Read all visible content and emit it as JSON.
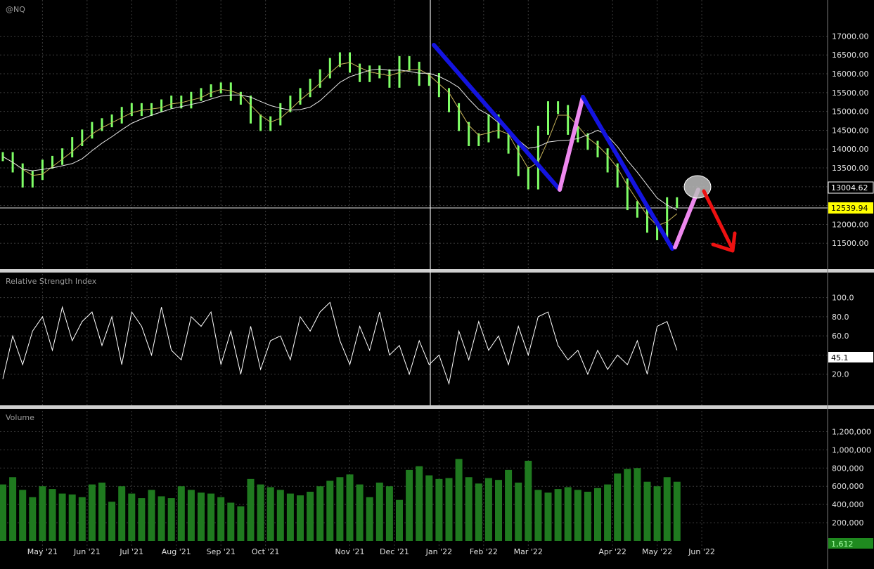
{
  "symbol": "@NQ",
  "x_axis": {
    "labels": [
      "May '21",
      "Jun '21",
      "Jul '21",
      "Aug '21",
      "Sep '21",
      "Oct '21",
      "Nov '21",
      "Dec '21",
      "Jan '22",
      "Feb '22",
      "Mar '22",
      "Apr '22",
      "May '22",
      "Jun '22"
    ],
    "positions_week": [
      4,
      8.5,
      13,
      17.5,
      22,
      26.5,
      35,
      39.5,
      44,
      48.5,
      53,
      61.5,
      66,
      70.5
    ]
  },
  "colors": {
    "background": "#000000",
    "grid": "#3a3a3a",
    "price_bars": "#7fff66",
    "ma_fast": "#c8b45a",
    "ma_slow": "#e8e8e8",
    "rsi_line": "#ffffff",
    "volume_bars": "#1f7a1f",
    "trend_down": "#1414e0",
    "trend_up": "#ee88ee",
    "forecast_arrow": "#ee1111",
    "last_price_tag": "#ffff00"
  },
  "price_panel": {
    "title": "@NQ",
    "last_value_label": "12539.94",
    "reference_value_label": "13004.62",
    "ylim": [
      11150,
      17400
    ],
    "ticks": [
      "17000.00",
      "16500.00",
      "16000.00",
      "15500.00",
      "15000.00",
      "14500.00",
      "14000.00",
      "13500.00",
      "13000.00",
      "12500.00",
      "12000.00",
      "11500.00"
    ]
  },
  "rsi_panel": {
    "title": "Relative Strength Index",
    "last_value_label": "45.1",
    "ylim": [
      0,
      110
    ],
    "ticks": [
      "100.0",
      "80.0",
      "60.0",
      "40.0",
      "20.0"
    ]
  },
  "volume_panel": {
    "title": "Volume",
    "last_value_label": "1,612",
    "ylim": [
      0,
      1350000
    ],
    "ticks": [
      "1,200,000",
      "1,000,000",
      "800,000",
      "600,000",
      "400,000",
      "200,000"
    ]
  },
  "chart_data": {
    "type": "line",
    "x_unit": "week",
    "price_close": {
      "name": "@NQ",
      "x": [
        0,
        1,
        2,
        3,
        4,
        5,
        6,
        7,
        8,
        9,
        10,
        11,
        12,
        13,
        14,
        15,
        16,
        17,
        18,
        19,
        20,
        21,
        22,
        23,
        24,
        25,
        26,
        27,
        28,
        29,
        30,
        31,
        32,
        33,
        34,
        35,
        36,
        37,
        38,
        39,
        40,
        41,
        42,
        43,
        44,
        45,
        46,
        47,
        48,
        49,
        50,
        51,
        52,
        53,
        54,
        55,
        56,
        57,
        58,
        59,
        60,
        61,
        62,
        63,
        64,
        65,
        66,
        67,
        68
      ],
      "values": [
        13800,
        13500,
        13100,
        13300,
        13600,
        13700,
        13900,
        14200,
        14400,
        14600,
        14700,
        14800,
        15000,
        15100,
        15000,
        15100,
        15200,
        15300,
        15200,
        15400,
        15500,
        15600,
        15650,
        15400,
        15300,
        14800,
        14600,
        14750,
        15100,
        15300,
        15500,
        15750,
        16000,
        16300,
        16450,
        16150,
        15900,
        16100,
        16000,
        15750,
        16350,
        16200,
        15800,
        15900,
        15500,
        15100,
        14600,
        14200,
        14300,
        14800,
        14400,
        14000,
        13400,
        13050,
        14500,
        15150,
        15050,
        14500,
        14300,
        14100,
        13900,
        13500,
        13100,
        12500,
        12300,
        11900,
        11700,
        12600,
        12550
      ]
    },
    "rsi": {
      "name": "Relative Strength Index",
      "x": [
        0,
        1,
        2,
        3,
        4,
        5,
        6,
        7,
        8,
        9,
        10,
        11,
        12,
        13,
        14,
        15,
        16,
        17,
        18,
        19,
        20,
        21,
        22,
        23,
        24,
        25,
        26,
        27,
        28,
        29,
        30,
        31,
        32,
        33,
        34,
        35,
        36,
        37,
        38,
        39,
        40,
        41,
        42,
        43,
        44,
        45,
        46,
        47,
        48,
        49,
        50,
        51,
        52,
        53,
        54,
        55,
        56,
        57,
        58,
        59,
        60,
        61,
        62,
        63,
        64,
        65,
        66,
        67,
        68
      ],
      "values": [
        15,
        60,
        30,
        65,
        80,
        45,
        90,
        55,
        75,
        85,
        50,
        80,
        30,
        85,
        70,
        40,
        90,
        45,
        35,
        80,
        70,
        85,
        30,
        65,
        20,
        70,
        25,
        55,
        60,
        35,
        80,
        65,
        85,
        95,
        55,
        30,
        70,
        45,
        85,
        40,
        50,
        20,
        55,
        30,
        40,
        10,
        65,
        35,
        75,
        45,
        60,
        30,
        70,
        40,
        80,
        85,
        50,
        35,
        45,
        20,
        45,
        25,
        40,
        30,
        55,
        20,
        70,
        75,
        45
      ]
    },
    "volume": {
      "name": "Volume",
      "x": [
        0,
        1,
        2,
        3,
        4,
        5,
        6,
        7,
        8,
        9,
        10,
        11,
        12,
        13,
        14,
        15,
        16,
        17,
        18,
        19,
        20,
        21,
        22,
        23,
        24,
        25,
        26,
        27,
        28,
        29,
        30,
        31,
        32,
        33,
        34,
        35,
        36,
        37,
        38,
        39,
        40,
        41,
        42,
        43,
        44,
        45,
        46,
        47,
        48,
        49,
        50,
        51,
        52,
        53,
        54,
        55,
        56,
        57,
        58,
        59,
        60,
        61,
        62,
        63,
        64,
        65,
        66,
        67,
        68
      ],
      "values": [
        620000,
        700000,
        560000,
        480000,
        600000,
        570000,
        520000,
        510000,
        480000,
        620000,
        640000,
        430000,
        600000,
        520000,
        470000,
        560000,
        490000,
        470000,
        600000,
        560000,
        530000,
        520000,
        480000,
        420000,
        380000,
        680000,
        620000,
        590000,
        560000,
        520000,
        500000,
        540000,
        600000,
        660000,
        700000,
        730000,
        620000,
        480000,
        640000,
        600000,
        450000,
        780000,
        820000,
        720000,
        680000,
        690000,
        900000,
        700000,
        630000,
        690000,
        670000,
        780000,
        640000,
        880000,
        560000,
        530000,
        570000,
        590000,
        560000,
        540000,
        580000,
        620000,
        740000,
        790000,
        800000,
        650000,
        600000,
        700000,
        650000
      ]
    },
    "ylim_price": [
      11150,
      17400
    ],
    "ylim_rsi": [
      0,
      110
    ],
    "ylim_volume": [
      0,
      1350000
    ]
  }
}
